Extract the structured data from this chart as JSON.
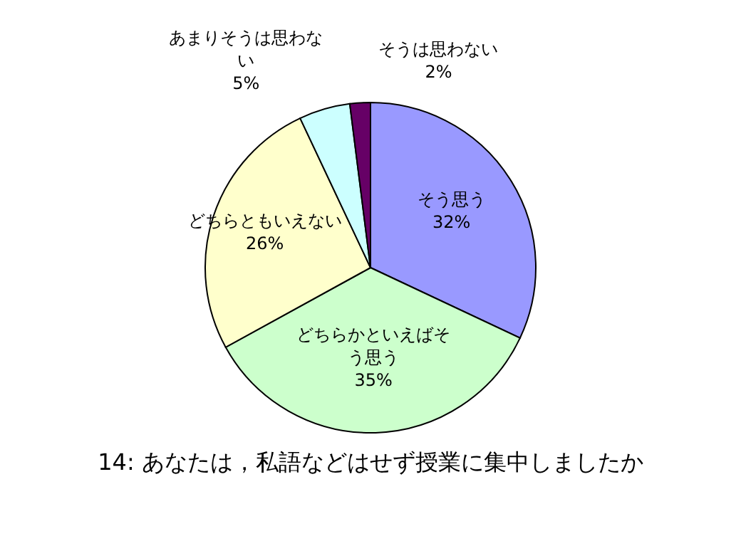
{
  "chart_data": {
    "type": "pie",
    "title": "14: あなたは，私語などはせず授業に集中しましたか",
    "categories": [
      "そう思う",
      "どちらかといえばそう思う",
      "どちらともいえない",
      "あまりそうは思わない",
      "そうは思わない"
    ],
    "values": [
      32,
      35,
      26,
      5,
      2
    ],
    "value_labels": [
      "32%",
      "35%",
      "26%",
      "5%",
      "2%"
    ],
    "colors": [
      "#9999ff",
      "#ccffcc",
      "#ffffcc",
      "#ccffff",
      "#660066"
    ]
  }
}
